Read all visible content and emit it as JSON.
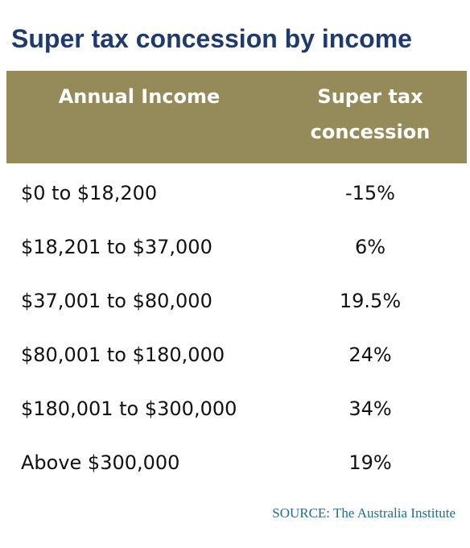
{
  "chart_data": {
    "type": "table",
    "title": "Super tax concession by income",
    "columns": [
      "Annual Income",
      [
        "Super tax",
        "concession"
      ]
    ],
    "rows": [
      {
        "income": "$0 to $18,200",
        "concession": "-15%"
      },
      {
        "income": "$18,201 to $37,000",
        "concession": "6%"
      },
      {
        "income": "$37,001 to $80,000",
        "concession": "19.5%"
      },
      {
        "income": "$80,001 to $180,000",
        "concession": "24%"
      },
      {
        "income": "$180,001 to $300,000",
        "concession": "34%"
      },
      {
        "income": "Above $300,000",
        "concession": "19%"
      }
    ],
    "source": "SOURCE: The Australia Institute"
  },
  "colors": {
    "title": "#1f3a6e",
    "header_band": "#948a5a",
    "header_text": "#ffffff",
    "source_text": "#1f6e8c"
  }
}
